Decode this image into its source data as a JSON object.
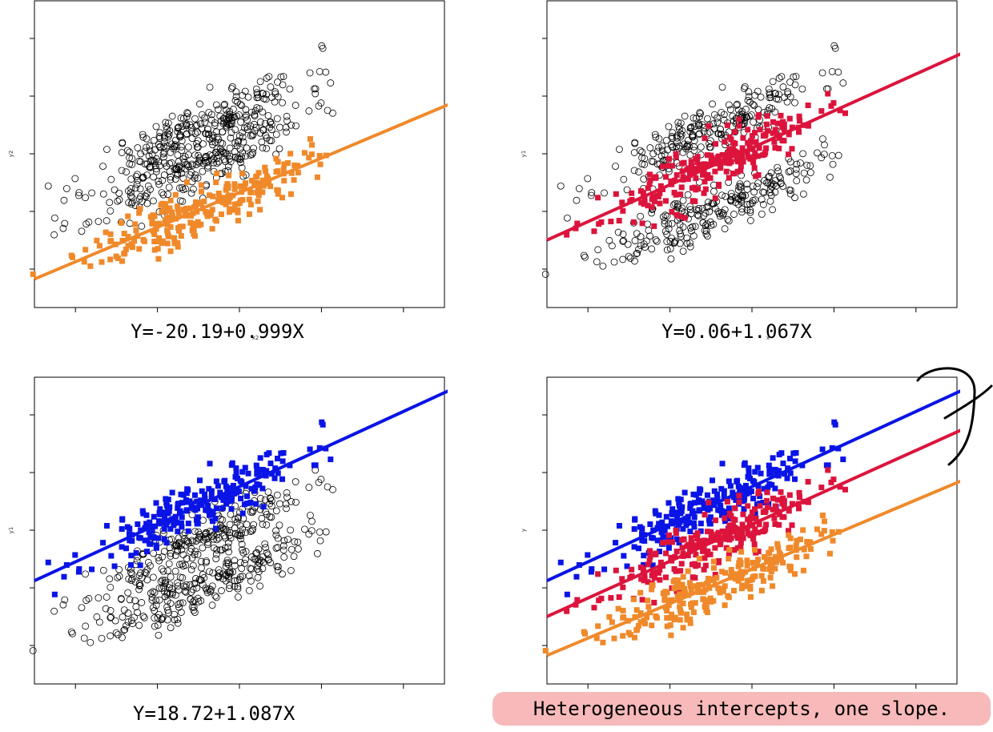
{
  "colors": {
    "orange": "#f0892a",
    "red": "#dc143c",
    "blue": "#0a14e6",
    "points": "#000000"
  },
  "chart_data": [
    {
      "type": "scatter",
      "title": "",
      "xlabel": "x2",
      "ylabel": "y2",
      "equation": "Y=-20.19+0.999X",
      "highlight": {
        "name": "",
        "color": "orange",
        "intercept": -20.19,
        "slope": 0.999
      },
      "grey_group": "bottom"
    },
    {
      "type": "scatter",
      "title": "",
      "xlabel": "x",
      "ylabel": "y1",
      "equation": "Y=0.06+1.067X",
      "highlight": {
        "name": "",
        "color": "red",
        "intercept": 0.06,
        "slope": 1.067
      },
      "grey_group": "middle"
    },
    {
      "type": "scatter",
      "title": "",
      "xlabel": "x",
      "ylabel": "y1",
      "equation": "Y=18.72+1.087X",
      "highlight": {
        "name": "",
        "color": "blue",
        "intercept": 18.72,
        "slope": 1.087
      },
      "grey_group": "top"
    },
    {
      "type": "scatter",
      "title": "",
      "xlabel": "",
      "ylabel": "y",
      "equation": "",
      "series": [
        {
          "name": "",
          "color": "blue",
          "intercept": 18.72,
          "slope": 1.087
        },
        {
          "name": "",
          "color": "red",
          "intercept": 0.06,
          "slope": 1.067
        },
        {
          "name": "",
          "color": "orange",
          "intercept": -20.19,
          "slope": 0.999
        }
      ]
    }
  ],
  "caption": "Heterogeneous intercepts, one slope."
}
